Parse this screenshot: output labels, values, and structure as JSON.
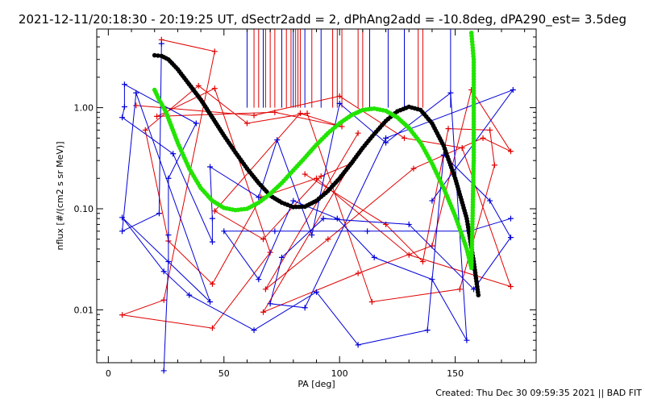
{
  "chart_data": {
    "type": "scatter",
    "title": "2021-12-11/20:18:30 - 20:19:25 UT, dSectr2add = 2, dPhAng2add = -10.8deg, dPA290_est=  3.5deg",
    "xlabel": "PA [deg]",
    "ylabel": "nflux [#/(cm2 s sr MeV)]",
    "xlim": [
      -5,
      185
    ],
    "ylim": [
      0.003,
      6
    ],
    "yscale": "log",
    "x_ticks": [
      0,
      50,
      100,
      150
    ],
    "x_tick_labels": [
      "0",
      "50",
      "100",
      "150"
    ],
    "y_ticks": [
      0.01,
      0.1,
      1.0
    ],
    "y_tick_labels": [
      "0.01",
      "0.10",
      "1.00"
    ],
    "grid": false,
    "footer": "Created: Thu Dec 30 09:59:35 2021 || BAD FIT",
    "colors": {
      "red": "#e00000",
      "blue": "#0000d8",
      "black": "#000000",
      "green": "#22e400"
    },
    "series": [
      {
        "color": "red",
        "style": "plus-markers-connected",
        "points": [
          [
            23,
            4.7
          ],
          [
            46,
            3.6
          ],
          [
            24,
            0.0125
          ],
          [
            6,
            0.0089
          ],
          [
            45,
            0.0066
          ],
          [
            70,
            0.037
          ],
          [
            46,
            1.55
          ],
          [
            21,
            0.82
          ],
          [
            72,
            0.9
          ],
          [
            101,
            0.65
          ],
          [
            83,
            0.88
          ],
          [
            46,
            0.095
          ],
          [
            67,
            0.05
          ],
          [
            92,
            0.21
          ],
          [
            105,
            0.28
          ],
          [
            67,
            0.0095
          ],
          [
            108,
            0.023
          ],
          [
            140,
            0.043
          ],
          [
            157,
            1.5
          ],
          [
            174,
            0.37
          ],
          [
            162,
            0.5
          ],
          [
            132,
            0.25
          ],
          [
            95,
            0.05
          ],
          [
            68,
            0.016
          ],
          [
            108,
            0.56
          ]
        ]
      },
      {
        "color": "red",
        "style": "plus-markers-connected",
        "points": [
          [
            12,
            1.05
          ],
          [
            63,
            0.84
          ],
          [
            100,
            1.3
          ],
          [
            128,
            0.5
          ],
          [
            153,
            0.4
          ],
          [
            174,
            0.017
          ],
          [
            130,
            0.035
          ],
          [
            90,
            0.2
          ],
          [
            66,
            0.13
          ],
          [
            45,
            0.018
          ],
          [
            26,
            0.048
          ],
          [
            16,
            0.6
          ],
          [
            39,
            1.65
          ],
          [
            60,
            0.7
          ],
          [
            86,
            0.88
          ],
          [
            114,
            0.012
          ],
          [
            152,
            0.016
          ],
          [
            167,
            0.27
          ],
          [
            165,
            0.6
          ],
          [
            147,
            0.62
          ],
          [
            136,
            0.03
          ],
          [
            120,
            0.07
          ],
          [
            85,
            0.22
          ]
        ]
      },
      {
        "color": "blue",
        "style": "plus-markers-connected",
        "points": [
          [
            23,
            4.3
          ],
          [
            22,
            0.09
          ],
          [
            6,
            0.06
          ],
          [
            12,
            1.4
          ],
          [
            44,
            0.012
          ],
          [
            6,
            0.082
          ],
          [
            24,
            0.024
          ],
          [
            35,
            0.014
          ],
          [
            63,
            0.0063
          ],
          [
            90,
            0.015
          ],
          [
            108,
            0.0045
          ],
          [
            138,
            0.0063
          ],
          [
            145,
            0.34
          ],
          [
            165,
            0.12
          ],
          [
            174,
            0.052
          ],
          [
            158,
            0.016
          ],
          [
            130,
            0.07
          ],
          [
            93,
            0.08
          ],
          [
            75,
            0.033
          ],
          [
            70,
            0.0115
          ],
          [
            85,
            0.0105
          ],
          [
            120,
            0.5
          ],
          [
            175,
            1.5
          ],
          [
            140,
            0.12
          ]
        ]
      },
      {
        "color": "blue",
        "style": "plus-markers-connected",
        "points": [
          [
            24,
            0.0025
          ],
          [
            26,
            0.03
          ],
          [
            26,
            0.055
          ],
          [
            26,
            0.2
          ],
          [
            38,
            0.7
          ],
          [
            7,
            1.7
          ],
          [
            7,
            1.02
          ],
          [
            6,
            0.8
          ],
          [
            28,
            0.35
          ],
          [
            45,
            0.047
          ],
          [
            45,
            0.08
          ],
          [
            44,
            0.26
          ],
          [
            65,
            0.13
          ],
          [
            73,
            0.48
          ],
          [
            88,
            0.055
          ],
          [
            100,
            1.1
          ],
          [
            120,
            0.45
          ],
          [
            148,
            1.4
          ],
          [
            155,
            0.005
          ],
          [
            140,
            0.02
          ],
          [
            115,
            0.033
          ],
          [
            99,
            0.08
          ],
          [
            80,
            0.12
          ],
          [
            65,
            0.02
          ],
          [
            50,
            0.06
          ],
          [
            72,
            0.06
          ],
          [
            112,
            0.06
          ],
          [
            156,
            0.06
          ],
          [
            174,
            0.08
          ]
        ]
      },
      {
        "color": "black",
        "style": "thick-dots",
        "points": [
          [
            20,
            3.3
          ],
          [
            23,
            3.25
          ],
          [
            26,
            3.0
          ],
          [
            30,
            2.4
          ],
          [
            35,
            1.7
          ],
          [
            40,
            1.2
          ],
          [
            45,
            0.8
          ],
          [
            50,
            0.53
          ],
          [
            55,
            0.36
          ],
          [
            60,
            0.25
          ],
          [
            65,
            0.18
          ],
          [
            70,
            0.135
          ],
          [
            75,
            0.115
          ],
          [
            80,
            0.104
          ],
          [
            85,
            0.105
          ],
          [
            90,
            0.12
          ],
          [
            95,
            0.15
          ],
          [
            100,
            0.2
          ],
          [
            105,
            0.28
          ],
          [
            110,
            0.4
          ],
          [
            115,
            0.55
          ],
          [
            120,
            0.74
          ],
          [
            125,
            0.92
          ],
          [
            130,
            1.02
          ],
          [
            135,
            0.95
          ],
          [
            140,
            0.7
          ],
          [
            145,
            0.42
          ],
          [
            150,
            0.2
          ],
          [
            155,
            0.08
          ],
          [
            158,
            0.03
          ],
          [
            160,
            0.014
          ]
        ]
      },
      {
        "color": "green",
        "style": "thick-dots",
        "points": [
          [
            20,
            1.5
          ],
          [
            22,
            1.2
          ],
          [
            25,
            0.9
          ],
          [
            30,
            0.45
          ],
          [
            35,
            0.25
          ],
          [
            40,
            0.16
          ],
          [
            45,
            0.12
          ],
          [
            50,
            0.102
          ],
          [
            55,
            0.097
          ],
          [
            60,
            0.1
          ],
          [
            65,
            0.115
          ],
          [
            70,
            0.14
          ],
          [
            75,
            0.18
          ],
          [
            80,
            0.24
          ],
          [
            85,
            0.32
          ],
          [
            90,
            0.43
          ],
          [
            95,
            0.56
          ],
          [
            100,
            0.7
          ],
          [
            105,
            0.84
          ],
          [
            110,
            0.95
          ],
          [
            115,
            0.98
          ],
          [
            120,
            0.93
          ],
          [
            125,
            0.8
          ],
          [
            130,
            0.63
          ],
          [
            135,
            0.45
          ],
          [
            140,
            0.28
          ],
          [
            145,
            0.16
          ],
          [
            150,
            0.085
          ],
          [
            155,
            0.04
          ],
          [
            157,
            0.026
          ],
          [
            157.5,
            0.08
          ],
          [
            158,
            0.3
          ],
          [
            158,
            1.0
          ],
          [
            158,
            3.0
          ],
          [
            157,
            5.5
          ]
        ]
      },
      {
        "color": "blue",
        "style": "vertical-lines-from-top",
        "x": [
          60,
          67,
          75,
          80,
          85,
          92,
          113,
          121,
          128,
          148
        ],
        "y_bottom": 1.0
      },
      {
        "color": "red",
        "style": "vertical-lines-from-top",
        "x": [
          63,
          65,
          68,
          70,
          72,
          77,
          79,
          81,
          82,
          83,
          88,
          97,
          99,
          101,
          108,
          110,
          134,
          136
        ],
        "y_bottom": 1.0
      }
    ]
  }
}
